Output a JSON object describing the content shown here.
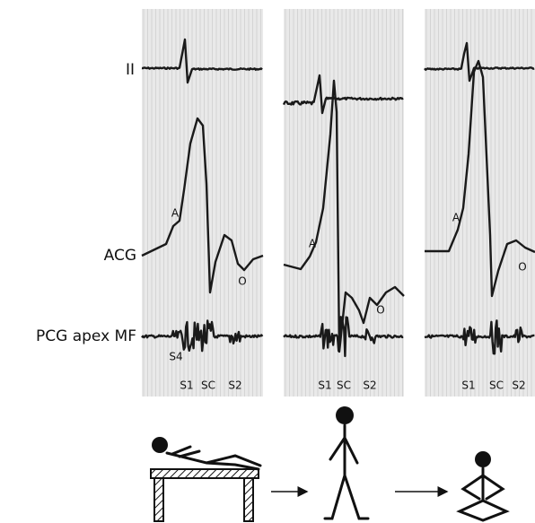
{
  "left_labels": [
    "II",
    "ACG",
    "PCG apex MF"
  ],
  "panels": [
    {
      "wave_labels": [
        "A",
        "O"
      ],
      "sound_labels": [
        "S4",
        "S1",
        "SC",
        "S2"
      ]
    },
    {
      "wave_labels": [
        "A",
        "O"
      ],
      "sound_labels": [
        "S1",
        "SC",
        "S2"
      ]
    },
    {
      "wave_labels": [
        "A",
        "O"
      ],
      "sound_labels": [
        "S1",
        "SC",
        "S2"
      ]
    }
  ]
}
